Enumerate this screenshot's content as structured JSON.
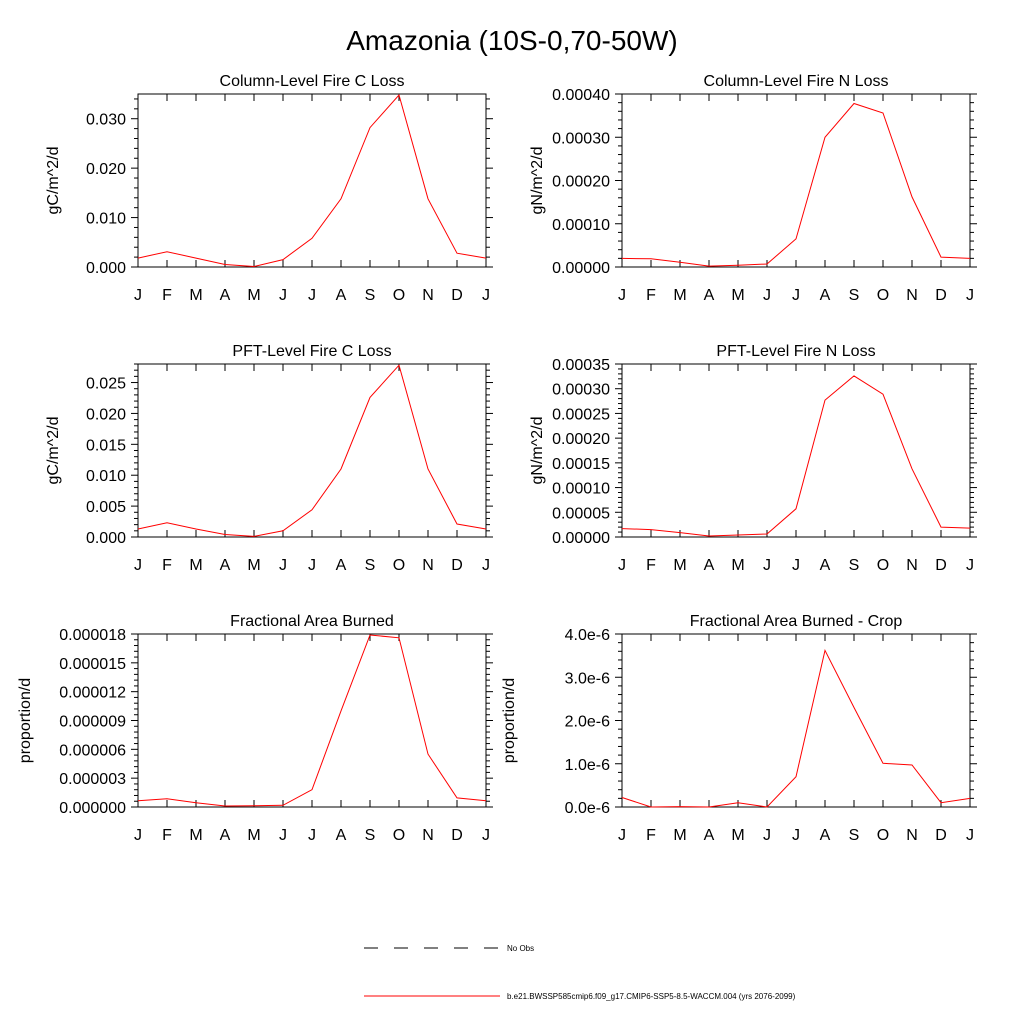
{
  "figure": {
    "title": "Amazonia (10S-0,70-50W)",
    "months": [
      "J",
      "F",
      "M",
      "A",
      "M",
      "J",
      "J",
      "A",
      "S",
      "O",
      "N",
      "D",
      "J"
    ]
  },
  "legend": {
    "no_obs_label": "No Obs",
    "model_label": "b.e21.BWSSP585cmip6.f09_g17.CMIP6-SSP5-8.5-WACCM.004 (yrs 2076-2099)",
    "no_obs_color": "#000000",
    "model_color": "#ff0000"
  },
  "chart_data": [
    {
      "type": "line",
      "title": "Column-Level Fire C Loss",
      "ylabel": "gC/m^2/d",
      "xlabel": "",
      "categories": [
        "J",
        "F",
        "M",
        "A",
        "M",
        "J",
        "J",
        "A",
        "S",
        "O",
        "N",
        "D",
        "J"
      ],
      "ylim": [
        0,
        0.035
      ],
      "yticks": [
        0,
        0.01,
        0.02,
        0.03
      ],
      "ytick_labels": [
        "0.000",
        "0.010",
        "0.020",
        "0.030"
      ],
      "series": [
        {
          "name": "b.e21.BWSSP585cmip6.f09_g17.CMIP6-SSP5-8.5-WACCM.004 (yrs 2076-2099)",
          "color": "#ff0000",
          "values": [
            0.0018,
            0.0031,
            0.0018,
            0.0005,
            0.0001,
            0.0015,
            0.0058,
            0.0138,
            0.0282,
            0.0348,
            0.0138,
            0.0028,
            0.0018
          ]
        }
      ]
    },
    {
      "type": "line",
      "title": "Column-Level Fire N Loss",
      "ylabel": "gN/m^2/d",
      "xlabel": "",
      "categories": [
        "J",
        "F",
        "M",
        "A",
        "M",
        "J",
        "J",
        "A",
        "S",
        "O",
        "N",
        "D",
        "J"
      ],
      "ylim": [
        0,
        0.0004
      ],
      "yticks": [
        0,
        0.0001,
        0.0002,
        0.0003,
        0.0004
      ],
      "ytick_labels": [
        "0.00000",
        "0.00010",
        "0.00020",
        "0.00030",
        "0.00040"
      ],
      "series": [
        {
          "name": "b.e21.BWSSP585cmip6.f09_g17.CMIP6-SSP5-8.5-WACCM.004 (yrs 2076-2099)",
          "color": "#ff0000",
          "values": [
            2e-05,
            1.9e-05,
            1.1e-05,
            2e-06,
            4e-06,
            7e-06,
            6.5e-05,
            0.0003,
            0.000378,
            0.000356,
            0.000162,
            2.3e-05,
            2e-05
          ]
        }
      ]
    },
    {
      "type": "line",
      "title": "PFT-Level Fire C Loss",
      "ylabel": "gC/m^2/d",
      "xlabel": "",
      "categories": [
        "J",
        "F",
        "M",
        "A",
        "M",
        "J",
        "J",
        "A",
        "S",
        "O",
        "N",
        "D",
        "J"
      ],
      "ylim": [
        0,
        0.028
      ],
      "yticks": [
        0,
        0.005,
        0.01,
        0.015,
        0.02,
        0.025
      ],
      "ytick_labels": [
        "0.000",
        "0.005",
        "0.010",
        "0.015",
        "0.020",
        "0.025"
      ],
      "series": [
        {
          "name": "b.e21.BWSSP585cmip6.f09_g17.CMIP6-SSP5-8.5-WACCM.004 (yrs 2076-2099)",
          "color": "#ff0000",
          "values": [
            0.0013,
            0.0023,
            0.0013,
            0.0004,
            0.0001,
            0.001,
            0.0044,
            0.011,
            0.0226,
            0.0278,
            0.011,
            0.0021,
            0.0013
          ]
        }
      ]
    },
    {
      "type": "line",
      "title": "PFT-Level Fire N Loss",
      "ylabel": "gN/m^2/d",
      "xlabel": "",
      "categories": [
        "J",
        "F",
        "M",
        "A",
        "M",
        "J",
        "J",
        "A",
        "S",
        "O",
        "N",
        "D",
        "J"
      ],
      "ylim": [
        0,
        0.00035
      ],
      "yticks": [
        0,
        5e-05,
        0.0001,
        0.00015,
        0.0002,
        0.00025,
        0.0003,
        0.00035
      ],
      "ytick_labels": [
        "0.00000",
        "0.00005",
        "0.00010",
        "0.00015",
        "0.00020",
        "0.00025",
        "0.00030",
        "0.00035"
      ],
      "series": [
        {
          "name": "b.e21.BWSSP585cmip6.f09_g17.CMIP6-SSP5-8.5-WACCM.004 (yrs 2076-2099)",
          "color": "#ff0000",
          "values": [
            1.7e-05,
            1.5e-05,
            9e-06,
            2e-06,
            4e-06,
            6e-06,
            5.7e-05,
            0.000277,
            0.000326,
            0.000289,
            0.000138,
            2e-05,
            1.8e-05
          ]
        }
      ]
    },
    {
      "type": "line",
      "title": "Fractional Area Burned",
      "ylabel": "proportion/d",
      "xlabel": "",
      "categories": [
        "J",
        "F",
        "M",
        "A",
        "M",
        "J",
        "J",
        "A",
        "S",
        "O",
        "N",
        "D",
        "J"
      ],
      "ylim": [
        0,
        1.8e-05
      ],
      "yticks": [
        0,
        3e-06,
        6e-06,
        9e-06,
        1.2e-05,
        1.5e-05,
        1.8e-05
      ],
      "ytick_labels": [
        "0.000000",
        "0.000003",
        "0.000006",
        "0.000009",
        "0.000012",
        "0.000015",
        "0.000018"
      ],
      "series": [
        {
          "name": "b.e21.BWSSP585cmip6.f09_g17.CMIP6-SSP5-8.5-WACCM.004 (yrs 2076-2099)",
          "color": "#ff0000",
          "values": [
            6.5e-07,
            8.5e-07,
            4.5e-07,
            1e-07,
            1.2e-07,
            1.8e-07,
            1.8e-06,
            1e-05,
            1.79e-05,
            1.76e-05,
            5.5e-06,
            9.5e-07,
            6.5e-07
          ]
        }
      ]
    },
    {
      "type": "line",
      "title": "Fractional Area Burned - Crop",
      "ylabel": "proportion/d",
      "xlabel": "",
      "categories": [
        "J",
        "F",
        "M",
        "A",
        "M",
        "J",
        "J",
        "A",
        "S",
        "O",
        "N",
        "D",
        "J"
      ],
      "ylim": [
        0,
        4e-06
      ],
      "yticks": [
        0,
        1e-06,
        2e-06,
        3e-06,
        4e-06
      ],
      "ytick_labels": [
        "0.0e-6",
        "1.0e-6",
        "2.0e-6",
        "3.0e-6",
        "4.0e-6"
      ],
      "series": [
        {
          "name": "b.e21.BWSSP585cmip6.f09_g17.CMIP6-SSP5-8.5-WACCM.004 (yrs 2076-2099)",
          "color": "#ff0000",
          "values": [
            2.2e-07,
            0.0,
            1e-08,
            0.0,
            1e-07,
            0.0,
            7e-07,
            3.62e-06,
            2.3e-06,
            1.01e-06,
            9.7e-07,
            1e-07,
            2e-07
          ]
        }
      ]
    }
  ]
}
